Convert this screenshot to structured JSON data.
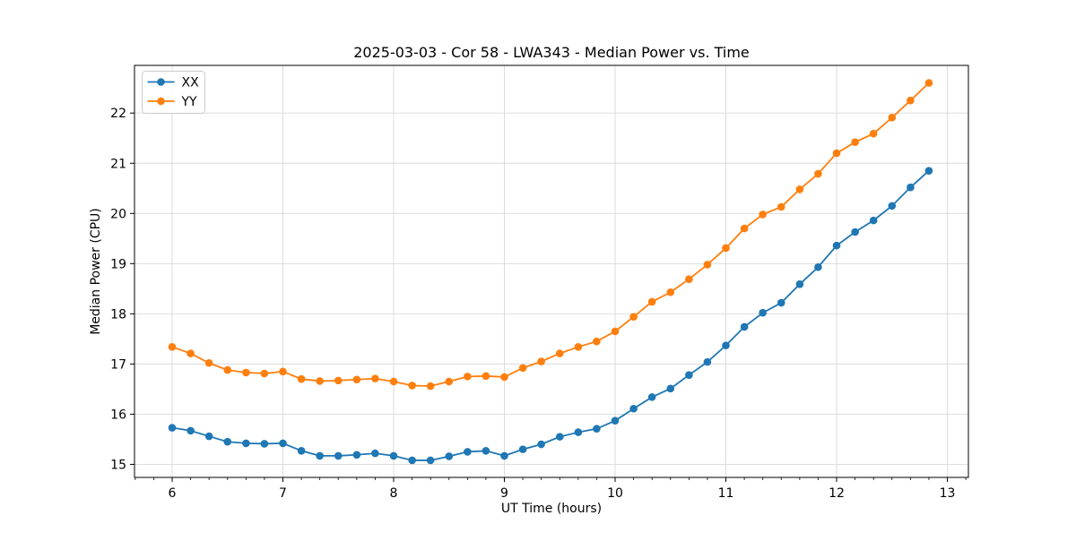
{
  "chart_data": {
    "type": "line",
    "title": "2025-03-03 - Cor 58 - LWA343 - Median Power vs. Time",
    "xlabel": "UT Time (hours)",
    "ylabel": "Median Power (CPU)",
    "xlim": [
      5.66,
      13.19
    ],
    "ylim": [
      14.74,
      22.95
    ],
    "xticks": [
      6,
      7,
      8,
      9,
      10,
      11,
      12,
      13
    ],
    "yticks": [
      15,
      16,
      17,
      18,
      19,
      20,
      21,
      22
    ],
    "x_minor_step": 0.166667,
    "grid": true,
    "legend_position": "upper-left",
    "colors": {
      "grid": "#d9d9d9",
      "spine": "#000000",
      "legend_border": "#cccccc"
    },
    "x": [
      6.0,
      6.167,
      6.333,
      6.5,
      6.667,
      6.833,
      7.0,
      7.167,
      7.333,
      7.5,
      7.667,
      7.833,
      8.0,
      8.167,
      8.333,
      8.5,
      8.667,
      8.833,
      9.0,
      9.167,
      9.333,
      9.5,
      9.667,
      9.833,
      10.0,
      10.167,
      10.333,
      10.5,
      10.667,
      10.833,
      11.0,
      11.167,
      11.333,
      11.5,
      11.667,
      11.833,
      12.0,
      12.167,
      12.333,
      12.5,
      12.667,
      12.833
    ],
    "series": [
      {
        "name": "XX",
        "color": "#1f77b4",
        "values": [
          15.73,
          15.67,
          15.56,
          15.45,
          15.42,
          15.41,
          15.42,
          15.27,
          15.17,
          15.17,
          15.19,
          15.22,
          15.17,
          15.08,
          15.08,
          15.16,
          15.25,
          15.27,
          15.17,
          15.3,
          15.4,
          15.55,
          15.64,
          15.71,
          15.87,
          16.11,
          16.34,
          16.51,
          16.78,
          17.04,
          17.37,
          17.74,
          18.02,
          18.22,
          18.59,
          18.93,
          19.36,
          19.63,
          19.86,
          20.15,
          20.52,
          20.85
        ]
      },
      {
        "name": "YY",
        "color": "#ff7f0e",
        "values": [
          17.34,
          17.21,
          17.02,
          16.88,
          16.83,
          16.81,
          16.85,
          16.7,
          16.66,
          16.67,
          16.69,
          16.71,
          16.65,
          16.57,
          16.56,
          16.65,
          16.75,
          16.76,
          16.74,
          16.92,
          17.05,
          17.21,
          17.34,
          17.45,
          17.65,
          17.94,
          18.24,
          18.43,
          18.69,
          18.98,
          19.31,
          19.7,
          19.98,
          20.13,
          20.48,
          20.79,
          21.2,
          21.42,
          21.59,
          21.91,
          22.25,
          22.6
        ]
      }
    ]
  }
}
